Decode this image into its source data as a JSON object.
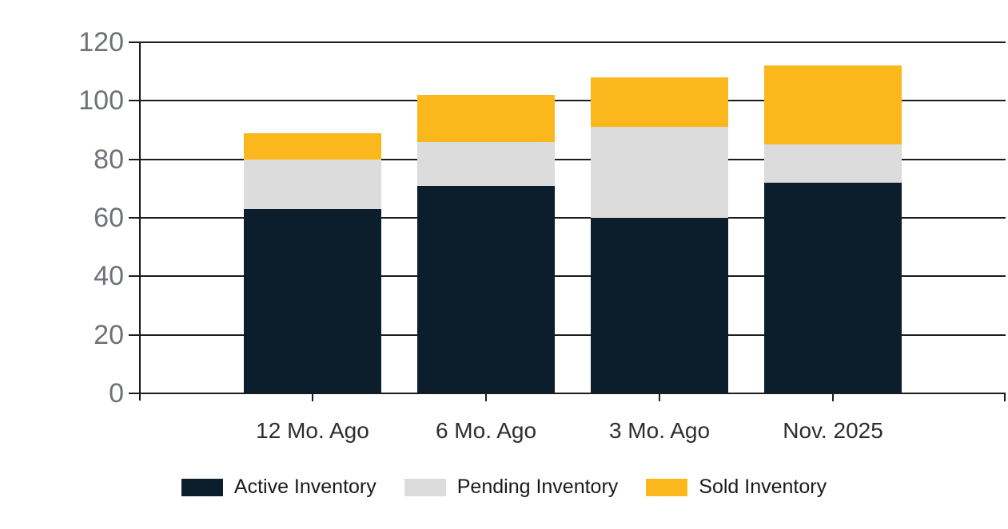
{
  "colors": {
    "active": "#0c1e2b",
    "pending": "#dcdcdc",
    "sold": "#fab81c",
    "grid": "#1c1c1c",
    "y_label": "#6e7276",
    "x_label": "#2e2e2e",
    "legend_text": "#1a1a1a",
    "background": "#ffffff"
  },
  "chart_data": {
    "type": "bar",
    "stacked": true,
    "title": "",
    "xlabel": "",
    "ylabel": "",
    "categories": [
      "12 Mo. Ago",
      "6 Mo. Ago",
      "3 Mo. Ago",
      "Nov. 2025"
    ],
    "series": [
      {
        "name": "Active Inventory",
        "color_key": "active",
        "values": [
          63,
          71,
          60,
          72
        ]
      },
      {
        "name": "Pending Inventory",
        "color_key": "pending",
        "values": [
          17,
          15,
          31,
          13
        ]
      },
      {
        "name": "Sold Inventory",
        "color_key": "sold",
        "values": [
          9,
          16,
          17,
          27
        ]
      }
    ],
    "stack_totals": [
      89,
      102,
      108,
      112
    ],
    "ylim": [
      0,
      120
    ],
    "yticks": [
      0,
      20,
      40,
      60,
      80,
      100,
      120
    ],
    "grid": true,
    "legend_position": "bottom"
  }
}
